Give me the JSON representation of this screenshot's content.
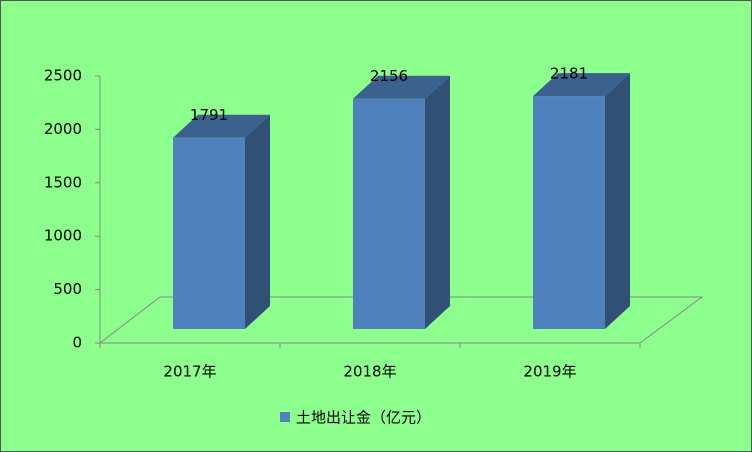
{
  "chart_data": {
    "type": "bar",
    "categories": [
      "2017年",
      "2018年",
      "2019年"
    ],
    "series": [
      {
        "name": "土地出让金（亿元）",
        "color": "#4f81bd",
        "values": [
          1791,
          2156,
          2181
        ]
      }
    ],
    "ylim": [
      0,
      2500
    ],
    "yticks": [
      0,
      500,
      1000,
      1500,
      2000,
      2500
    ]
  }
}
